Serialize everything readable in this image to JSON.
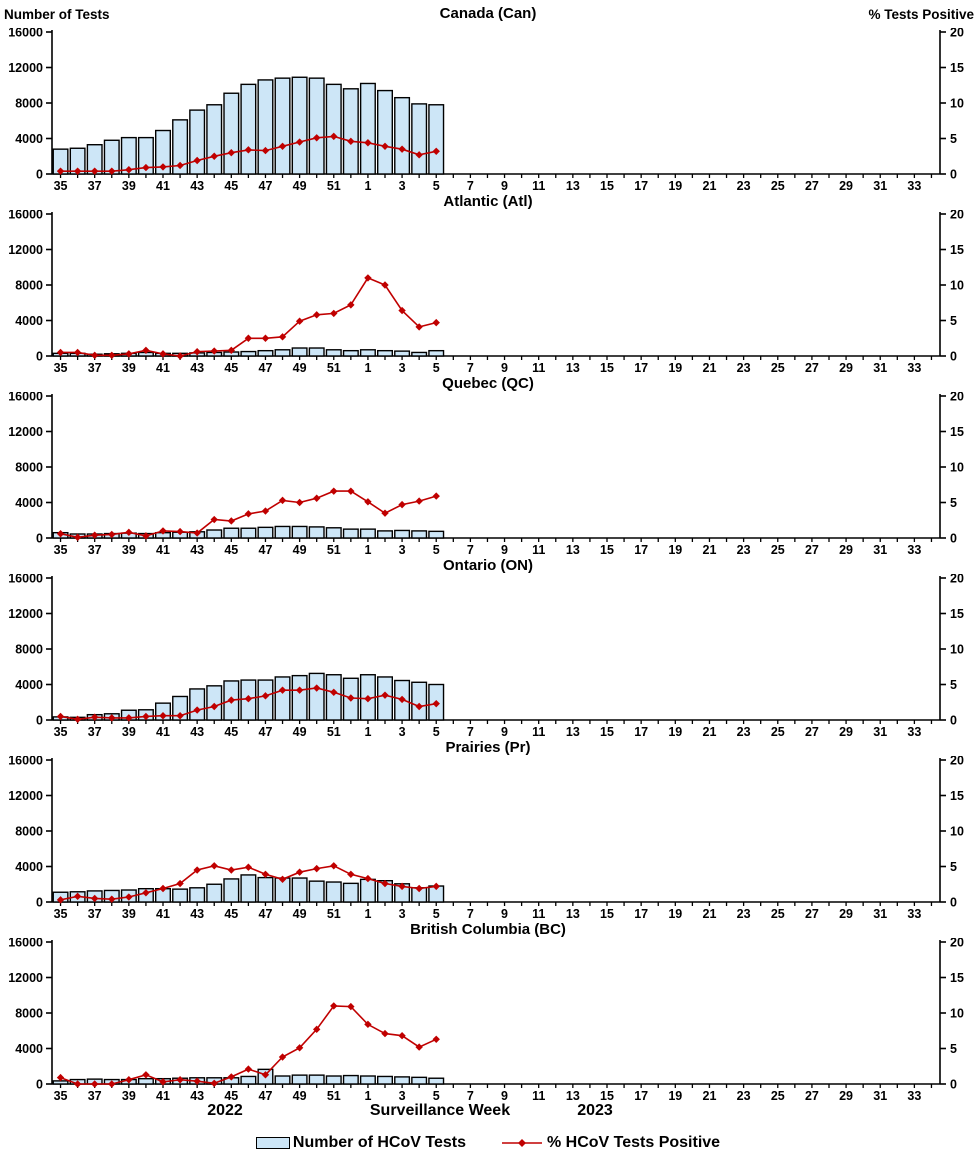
{
  "header": {
    "left_axis_title": "Number of Tests",
    "right_axis_title": "% Tests Positive"
  },
  "footer": {
    "year_left": "2022",
    "x_axis_title": "Surveillance Week",
    "year_right": "2023"
  },
  "legend": {
    "bars_label": "Number of HCoV Tests",
    "line_label": "% HCoV Tests Positive"
  },
  "colors": {
    "bar_fill": "#CDE6F7",
    "bar_stroke": "#000000",
    "line": "#C00000",
    "axis": "#000000",
    "text": "#000000"
  },
  "x_axis": {
    "title": "Surveillance Week",
    "tick_labels": [
      35,
      37,
      39,
      41,
      43,
      45,
      47,
      49,
      51,
      1,
      3,
      5,
      7,
      9,
      11,
      13,
      15,
      17,
      19,
      21,
      23,
      25,
      27,
      29,
      31,
      33
    ],
    "total_weeks": 52
  },
  "chart_data": [
    {
      "type": "bar+line",
      "title": "Canada (Can)",
      "xlabel": "Surveillance Week",
      "left_ylabel": "Number of Tests",
      "right_ylabel": "% Tests Positive",
      "left_ylim": [
        0,
        16000
      ],
      "right_ylim": [
        0,
        20
      ],
      "left_ticks": [
        0,
        4000,
        8000,
        12000,
        16000
      ],
      "right_ticks": [
        0,
        5,
        10,
        15,
        20
      ],
      "x_weeks": [
        35,
        36,
        37,
        38,
        39,
        40,
        41,
        42,
        43,
        44,
        45,
        46,
        47,
        48,
        49,
        50,
        51,
        52,
        1,
        2,
        3,
        4,
        5
      ],
      "series": [
        {
          "name": "Number of HCoV Tests",
          "axis": "left",
          "values": [
            2800,
            2900,
            3300,
            3800,
            4100,
            4100,
            4900,
            6100,
            7200,
            7800,
            9100,
            10100,
            10600,
            10800,
            10900,
            10800,
            10100,
            9600,
            10200,
            9400,
            8600,
            7900,
            7800
          ]
        },
        {
          "name": "% HCoV Tests Positive",
          "axis": "right",
          "values": [
            0.4,
            0.4,
            0.4,
            0.4,
            0.6,
            0.9,
            1.0,
            1.2,
            1.9,
            2.5,
            3.0,
            3.4,
            3.3,
            3.9,
            4.5,
            5.1,
            5.3,
            4.6,
            4.4,
            3.9,
            3.5,
            2.7,
            3.2
          ]
        }
      ]
    },
    {
      "type": "bar+line",
      "title": "Atlantic (Atl)",
      "xlabel": "Surveillance Week",
      "left_ylabel": "Number of Tests",
      "right_ylabel": "% Tests Positive",
      "left_ylim": [
        0,
        16000
      ],
      "right_ylim": [
        0,
        20
      ],
      "left_ticks": [
        0,
        4000,
        8000,
        12000,
        16000
      ],
      "right_ticks": [
        0,
        5,
        10,
        15,
        20
      ],
      "x_weeks": [
        35,
        36,
        37,
        38,
        39,
        40,
        41,
        42,
        43,
        44,
        45,
        46,
        47,
        48,
        49,
        50,
        51,
        52,
        1,
        2,
        3,
        4,
        5
      ],
      "series": [
        {
          "name": "Number of HCoV Tests",
          "axis": "left",
          "values": [
            300,
            300,
            200,
            250,
            300,
            400,
            300,
            300,
            350,
            400,
            450,
            500,
            600,
            700,
            900,
            900,
            700,
            600,
            700,
            600,
            550,
            400,
            600
          ]
        },
        {
          "name": "% HCoV Tests Positive",
          "axis": "right",
          "values": [
            0.5,
            0.5,
            0.1,
            0.1,
            0.3,
            0.8,
            0.3,
            0.0,
            0.6,
            0.7,
            0.8,
            2.5,
            2.5,
            2.7,
            4.9,
            5.8,
            6.0,
            7.2,
            11.0,
            10.0,
            6.4,
            4.1,
            4.7
          ]
        }
      ]
    },
    {
      "type": "bar+line",
      "title": "Quebec (QC)",
      "xlabel": "Surveillance Week",
      "left_ylabel": "Number of Tests",
      "right_ylabel": "% Tests Positive",
      "left_ylim": [
        0,
        16000
      ],
      "right_ylim": [
        0,
        20
      ],
      "left_ticks": [
        0,
        4000,
        8000,
        12000,
        16000
      ],
      "right_ticks": [
        0,
        5,
        10,
        15,
        20
      ],
      "x_weeks": [
        35,
        36,
        37,
        38,
        39,
        40,
        41,
        42,
        43,
        44,
        45,
        46,
        47,
        48,
        49,
        50,
        51,
        52,
        1,
        2,
        3,
        4,
        5
      ],
      "series": [
        {
          "name": "Number of HCoV Tests",
          "axis": "left",
          "values": [
            600,
            450,
            450,
            500,
            550,
            500,
            600,
            650,
            700,
            900,
            1100,
            1100,
            1200,
            1300,
            1300,
            1250,
            1150,
            1000,
            1000,
            800,
            850,
            800,
            750
          ]
        },
        {
          "name": "% HCoV Tests Positive",
          "axis": "right",
          "values": [
            0.6,
            0.1,
            0.4,
            0.5,
            0.8,
            0.3,
            1.0,
            0.9,
            0.7,
            2.6,
            2.4,
            3.4,
            3.8,
            5.3,
            5.0,
            5.6,
            6.6,
            6.6,
            5.1,
            3.5,
            4.7,
            5.2,
            5.9
          ]
        }
      ]
    },
    {
      "type": "bar+line",
      "title": "Ontario (ON)",
      "xlabel": "Surveillance Week",
      "left_ylabel": "Number of Tests",
      "right_ylabel": "% Tests Positive",
      "left_ylim": [
        0,
        16000
      ],
      "right_ylim": [
        0,
        20
      ],
      "left_ticks": [
        0,
        4000,
        8000,
        12000,
        16000
      ],
      "right_ticks": [
        0,
        5,
        10,
        15,
        20
      ],
      "x_weeks": [
        35,
        36,
        37,
        38,
        39,
        40,
        41,
        42,
        43,
        44,
        45,
        46,
        47,
        48,
        49,
        50,
        51,
        52,
        1,
        2,
        3,
        4,
        5
      ],
      "series": [
        {
          "name": "Number of HCoV Tests",
          "axis": "left",
          "values": [
            350,
            300,
            600,
            700,
            1100,
            1150,
            1900,
            2650,
            3500,
            3850,
            4400,
            4500,
            4500,
            4850,
            5000,
            5250,
            5100,
            4700,
            5100,
            4850,
            4450,
            4250,
            4000
          ]
        },
        {
          "name": "% HCoV Tests Positive",
          "axis": "right",
          "values": [
            0.5,
            0.1,
            0.4,
            0.3,
            0.3,
            0.5,
            0.6,
            0.6,
            1.4,
            1.9,
            2.8,
            3.0,
            3.4,
            4.2,
            4.2,
            4.5,
            3.9,
            3.1,
            3.0,
            3.5,
            2.9,
            1.9,
            2.3
          ]
        }
      ]
    },
    {
      "type": "bar+line",
      "title": "Prairies (Pr)",
      "xlabel": "Surveillance Week",
      "left_ylabel": "Number of Tests",
      "right_ylabel": "% Tests Positive",
      "left_ylim": [
        0,
        16000
      ],
      "right_ylim": [
        0,
        20
      ],
      "left_ticks": [
        0,
        4000,
        8000,
        12000,
        16000
      ],
      "right_ticks": [
        0,
        5,
        10,
        15,
        20
      ],
      "x_weeks": [
        35,
        36,
        37,
        38,
        39,
        40,
        41,
        42,
        43,
        44,
        45,
        46,
        47,
        48,
        49,
        50,
        51,
        52,
        1,
        2,
        3,
        4,
        5
      ],
      "series": [
        {
          "name": "Number of HCoV Tests",
          "axis": "left",
          "values": [
            1100,
            1150,
            1250,
            1300,
            1350,
            1500,
            1500,
            1450,
            1600,
            2000,
            2600,
            3050,
            2750,
            2700,
            2700,
            2350,
            2250,
            2100,
            2550,
            2400,
            2050,
            1600,
            1800
          ]
        },
        {
          "name": "% HCoV Tests Positive",
          "axis": "right",
          "values": [
            0.3,
            0.8,
            0.5,
            0.4,
            0.7,
            1.3,
            1.9,
            2.6,
            4.5,
            5.1,
            4.5,
            4.9,
            3.9,
            3.2,
            4.2,
            4.7,
            5.1,
            3.9,
            3.3,
            2.6,
            2.2,
            1.9,
            2.2
          ]
        }
      ]
    },
    {
      "type": "bar+line",
      "title": "British Columbia (BC)",
      "xlabel": "Surveillance Week",
      "left_ylabel": "Number of Tests",
      "right_ylabel": "% Tests Positive",
      "left_ylim": [
        0,
        16000
      ],
      "right_ylim": [
        0,
        20
      ],
      "left_ticks": [
        0,
        4000,
        8000,
        12000,
        16000
      ],
      "right_ticks": [
        0,
        5,
        10,
        15,
        20
      ],
      "x_weeks": [
        35,
        36,
        37,
        38,
        39,
        40,
        41,
        42,
        43,
        44,
        45,
        46,
        47,
        48,
        49,
        50,
        51,
        52,
        1,
        2,
        3,
        4,
        5
      ],
      "series": [
        {
          "name": "Number of HCoV Tests",
          "axis": "left",
          "values": [
            350,
            500,
            550,
            500,
            500,
            600,
            600,
            650,
            700,
            700,
            700,
            850,
            1650,
            900,
            1000,
            1000,
            900,
            950,
            900,
            850,
            800,
            750,
            650
          ]
        },
        {
          "name": "% HCoV Tests Positive",
          "axis": "right",
          "values": [
            0.9,
            0.0,
            0.0,
            0.0,
            0.6,
            1.3,
            0.3,
            0.6,
            0.4,
            0.1,
            1.0,
            2.1,
            1.3,
            3.8,
            5.1,
            7.7,
            11.0,
            10.9,
            8.4,
            7.1,
            6.8,
            5.2,
            6.3
          ]
        }
      ]
    }
  ]
}
